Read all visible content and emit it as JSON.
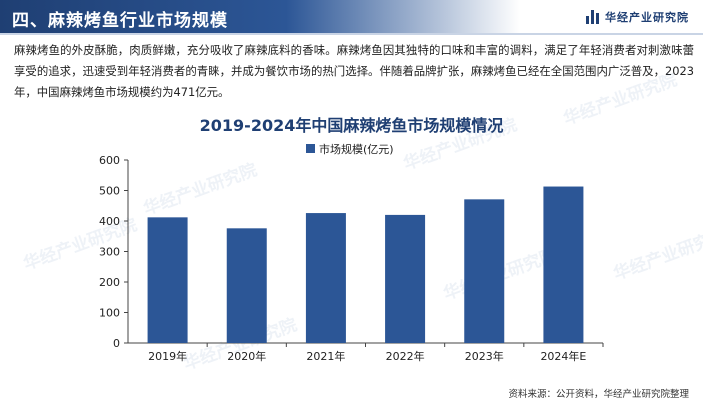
{
  "header": {
    "title": "四、麻辣烤鱼行业市场规模",
    "brand": "华经产业研究院"
  },
  "intro_text": "麻辣烤鱼的外皮酥脆，肉质鲜嫩，充分吸收了麻辣底料的香味。麻辣烤鱼因其独特的口味和丰富的调料，满足了年轻消费者对刺激味蕾享受的追求，迅速受到年轻消费者的青睐，并成为餐饮市场的热门选择。伴随着品牌扩张，麻辣烤鱼已经在全国范围内广泛普及，2023年，中国麻辣烤鱼市场规模约为471亿元。",
  "watermark_text": "华经产业研究院",
  "source": "资料来源：公开资料，华经产业研究院整理",
  "colors": {
    "bar": "#2c5696",
    "title": "#1f3f73",
    "header": "#2c5696"
  },
  "chart_data": {
    "type": "bar",
    "title": "2019-2024年中国麻辣烤鱼市场规模情况",
    "categories": [
      "2019年",
      "2020年",
      "2021年",
      "2022年",
      "2023年",
      "2024年E"
    ],
    "series": [
      {
        "name": "市场规模(亿元)",
        "values": [
          412,
          376,
          426,
          420,
          471,
          513
        ]
      }
    ],
    "ylim": [
      0,
      600
    ],
    "yticks": [
      0,
      100,
      200,
      300,
      400,
      500,
      600
    ],
    "legend_position": "top-left",
    "grid": false
  }
}
